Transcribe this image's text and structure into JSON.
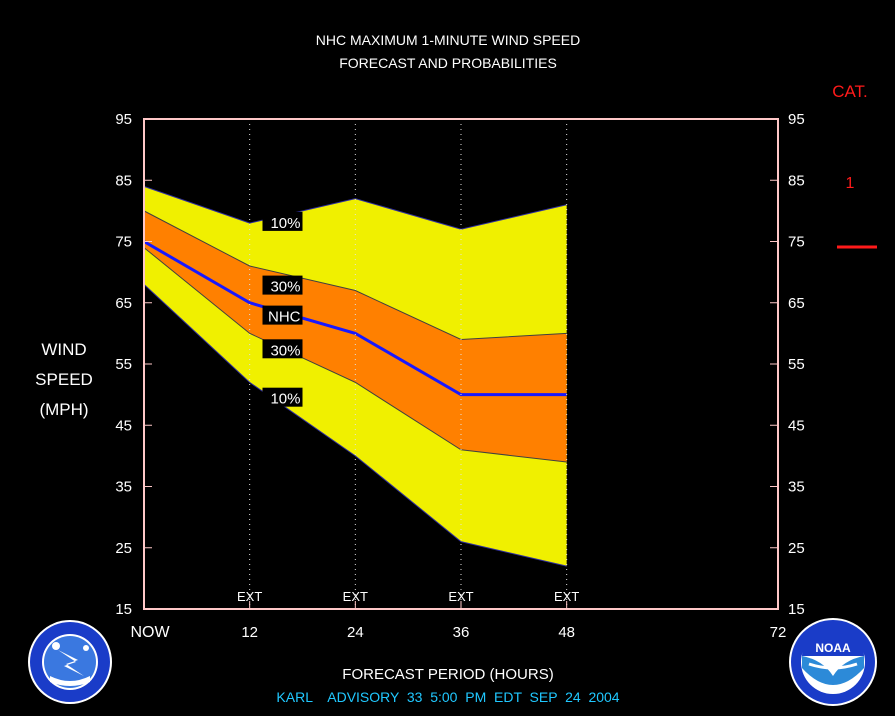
{
  "title": [
    "NHC MAXIMUM 1-MINUTE WIND SPEED",
    "FORECAST AND PROBABILITIES"
  ],
  "ylabel": [
    "WIND",
    "SPEED",
    "(MPH)"
  ],
  "xlabel": "FORECAST PERIOD (HOURS)",
  "footer": "KARL    ADVISORY  33  5:00  PM  EDT  SEP  24  2004",
  "category": {
    "header": "CAT.",
    "value": "1",
    "color": "#ff1a1a"
  },
  "logos": {
    "left": "NATIONAL WEATHER SERVICE",
    "right": "NOAA"
  },
  "colors": {
    "outer_band": "#f0f000",
    "inner_band": "#ff8000",
    "nhc_line": "#1818ff",
    "frame": "#ffc8c8",
    "footer": "#20c8ff"
  },
  "chart_data": {
    "type": "area",
    "x": [
      0,
      12,
      24,
      36,
      48
    ],
    "x_tick_labels": [
      "NOW",
      "12",
      "24",
      "36",
      "48",
      "72"
    ],
    "x_tick_values": [
      0,
      12,
      24,
      36,
      48,
      72
    ],
    "xlim": [
      0,
      72
    ],
    "ylim": [
      15,
      95
    ],
    "y_ticks": [
      15,
      25,
      35,
      45,
      55,
      65,
      75,
      85,
      95
    ],
    "ext_label": "EXT",
    "ext_marks": [
      12,
      24,
      36,
      48
    ],
    "series": [
      {
        "name": "10%",
        "role": "upper",
        "values": [
          84,
          78,
          82,
          77,
          81
        ]
      },
      {
        "name": "30%",
        "role": "upper",
        "values": [
          80,
          71,
          67,
          59,
          60
        ]
      },
      {
        "name": "NHC",
        "values": [
          75,
          65,
          60,
          50,
          50
        ]
      },
      {
        "name": "30%",
        "role": "lower",
        "values": [
          74,
          60,
          52,
          41,
          39
        ]
      },
      {
        "name": "10%",
        "role": "lower",
        "values": [
          68,
          52,
          40,
          26,
          22
        ]
      }
    ],
    "category_threshold": 74
  }
}
